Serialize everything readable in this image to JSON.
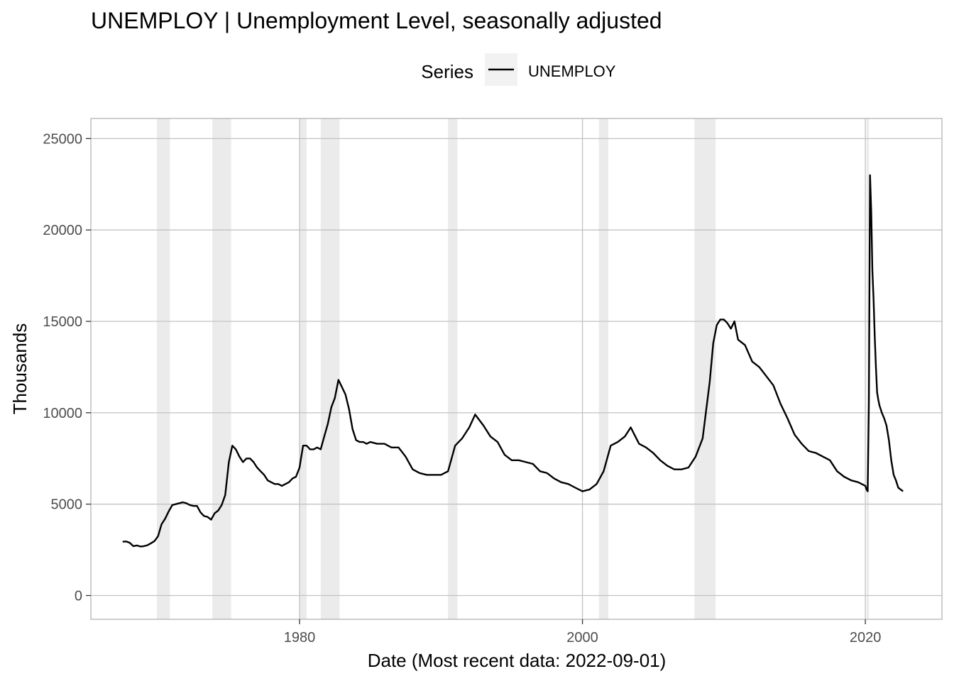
{
  "chart_data": {
    "type": "line",
    "title": "UNEMPLOY | Unemployment Level, seasonally adjusted",
    "xlabel": "Date (Most recent data: 2022-09-01)",
    "ylabel": "Thousands",
    "legend": {
      "title": "Series",
      "placement": "top",
      "entries": [
        "UNEMPLOY"
      ]
    },
    "grid": "major",
    "xlim": [
      "1965-04-01",
      "2025-06-01"
    ],
    "ylim": [
      -1300,
      26100
    ],
    "x_ticks": [
      {
        "label": "1980",
        "date": "1980-01-01"
      },
      {
        "label": "2000",
        "date": "2000-01-01"
      },
      {
        "label": "2020",
        "date": "2020-01-01"
      }
    ],
    "y_ticks": [
      0,
      5000,
      10000,
      15000,
      20000,
      25000
    ],
    "colors": {
      "line": "#000000",
      "recession": "#ebebeb",
      "grid": "#c2c2c2",
      "legend_key_bg": "#f2f2f2"
    },
    "recessions": [
      [
        "1969-12-01",
        "1970-11-01"
      ],
      [
        "1973-11-01",
        "1975-03-01"
      ],
      [
        "1980-01-01",
        "1980-07-01"
      ],
      [
        "1981-07-01",
        "1982-11-01"
      ],
      [
        "1990-07-01",
        "1991-03-01"
      ],
      [
        "2001-03-01",
        "2001-11-01"
      ],
      [
        "2007-12-01",
        "2009-06-01"
      ],
      [
        "2020-02-01",
        "2020-04-01"
      ]
    ],
    "series": [
      {
        "name": "UNEMPLOY",
        "x": [
          "1967-07-01",
          "1967-10-01",
          "1968-01-01",
          "1968-04-01",
          "1968-07-01",
          "1968-10-01",
          "1969-01-01",
          "1969-04-01",
          "1969-07-01",
          "1969-10-01",
          "1970-01-01",
          "1970-04-01",
          "1970-07-01",
          "1970-10-01",
          "1971-01-01",
          "1971-04-01",
          "1971-07-01",
          "1971-10-01",
          "1972-01-01",
          "1972-04-01",
          "1972-07-01",
          "1972-10-01",
          "1973-01-01",
          "1973-04-01",
          "1973-07-01",
          "1973-10-01",
          "1974-01-01",
          "1974-04-01",
          "1974-07-01",
          "1974-10-01",
          "1975-01-01",
          "1975-04-01",
          "1975-07-01",
          "1975-10-01",
          "1976-01-01",
          "1976-04-01",
          "1976-07-01",
          "1976-10-01",
          "1977-01-01",
          "1977-04-01",
          "1977-07-01",
          "1977-10-01",
          "1978-01-01",
          "1978-04-01",
          "1978-07-01",
          "1978-10-01",
          "1979-01-01",
          "1979-04-01",
          "1979-07-01",
          "1979-10-01",
          "1980-01-01",
          "1980-04-01",
          "1980-07-01",
          "1980-10-01",
          "1981-01-01",
          "1981-04-01",
          "1981-07-01",
          "1981-10-01",
          "1982-01-01",
          "1982-04-01",
          "1982-07-01",
          "1982-10-01",
          "1983-01-01",
          "1983-04-01",
          "1983-07-01",
          "1983-10-01",
          "1984-01-01",
          "1984-04-01",
          "1984-07-01",
          "1984-10-01",
          "1985-01-01",
          "1985-07-01",
          "1986-01-01",
          "1986-07-01",
          "1987-01-01",
          "1987-07-01",
          "1988-01-01",
          "1988-07-01",
          "1989-01-01",
          "1989-07-01",
          "1990-01-01",
          "1990-07-01",
          "1991-01-01",
          "1991-07-01",
          "1992-01-01",
          "1992-06-01",
          "1993-01-01",
          "1993-07-01",
          "1994-01-01",
          "1994-07-01",
          "1995-01-01",
          "1995-07-01",
          "1996-01-01",
          "1996-07-01",
          "1997-01-01",
          "1997-07-01",
          "1998-01-01",
          "1998-07-01",
          "1999-01-01",
          "1999-07-01",
          "2000-01-01",
          "2000-07-01",
          "2001-01-01",
          "2001-07-01",
          "2002-01-01",
          "2002-07-01",
          "2003-01-01",
          "2003-06-01",
          "2004-01-01",
          "2004-07-01",
          "2005-01-01",
          "2005-07-01",
          "2006-01-01",
          "2006-07-01",
          "2007-01-01",
          "2007-07-01",
          "2008-01-01",
          "2008-07-01",
          "2009-01-01",
          "2009-04-01",
          "2009-07-01",
          "2009-10-01",
          "2010-01-01",
          "2010-04-01",
          "2010-07-01",
          "2010-10-01",
          "2011-01-01",
          "2011-07-01",
          "2012-01-01",
          "2012-07-01",
          "2013-01-01",
          "2013-07-01",
          "2014-01-01",
          "2014-07-01",
          "2015-01-01",
          "2015-07-01",
          "2016-01-01",
          "2016-07-01",
          "2017-01-01",
          "2017-07-01",
          "2018-01-01",
          "2018-07-01",
          "2019-01-01",
          "2019-07-01",
          "2020-01-01",
          "2020-02-01",
          "2020-03-01",
          "2020-04-01",
          "2020-05-01",
          "2020-06-01",
          "2020-07-01",
          "2020-08-01",
          "2020-09-01",
          "2020-10-01",
          "2020-11-01",
          "2020-12-01",
          "2021-01-01",
          "2021-03-01",
          "2021-05-01",
          "2021-07-01",
          "2021-09-01",
          "2021-11-01",
          "2022-01-01",
          "2022-03-01",
          "2022-05-01",
          "2022-07-01",
          "2022-09-01"
        ],
        "values": [
          2945,
          2958,
          2878,
          2700,
          2740,
          2680,
          2700,
          2750,
          2860,
          2980,
          3250,
          3900,
          4200,
          4600,
          4950,
          5000,
          5050,
          5100,
          5050,
          4950,
          4900,
          4900,
          4550,
          4350,
          4300,
          4150,
          4500,
          4650,
          4950,
          5500,
          7300,
          8200,
          8000,
          7600,
          7300,
          7500,
          7500,
          7300,
          7000,
          6800,
          6600,
          6300,
          6200,
          6100,
          6100,
          6000,
          6100,
          6200,
          6400,
          6500,
          7000,
          8200,
          8200,
          8000,
          8000,
          8100,
          8000,
          8700,
          9400,
          10300,
          10800,
          11800,
          11400,
          11000,
          10200,
          9100,
          8500,
          8400,
          8400,
          8300,
          8400,
          8300,
          8300,
          8100,
          8100,
          7600,
          6900,
          6700,
          6600,
          6600,
          6600,
          6800,
          8200,
          8600,
          9200,
          9900,
          9300,
          8700,
          8400,
          7700,
          7400,
          7400,
          7300,
          7200,
          6800,
          6700,
          6400,
          6200,
          6100,
          5900,
          5700,
          5800,
          6100,
          6800,
          8200,
          8400,
          8700,
          9200,
          8300,
          8100,
          7800,
          7400,
          7100,
          6900,
          6900,
          7000,
          7600,
          8600,
          11700,
          13800,
          14800,
          15100,
          15100,
          14900,
          14600,
          15000,
          14000,
          13700,
          12800,
          12500,
          12000,
          11500,
          10500,
          9700,
          8800,
          8300,
          7900,
          7800,
          7600,
          7400,
          6800,
          6500,
          6300,
          6200,
          6000,
          5800,
          5700,
          10600,
          23000,
          21000,
          17800,
          16200,
          14100,
          12500,
          11100,
          10700,
          10400,
          10000,
          9700,
          9300,
          8500,
          7400,
          6600,
          6300,
          5900,
          5800,
          5700
        ]
      }
    ]
  }
}
